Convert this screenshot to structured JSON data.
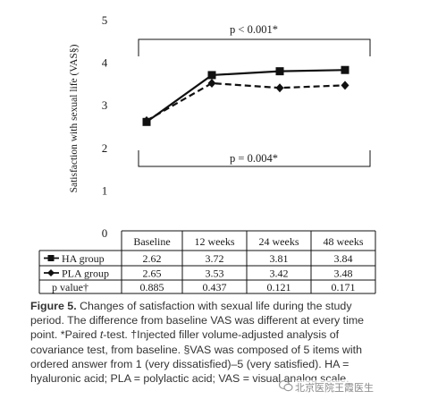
{
  "chart_data": {
    "type": "line",
    "ylabel": "Satisfaction with sexual life (VAS§)",
    "ylim": [
      0,
      5
    ],
    "yticks": [
      "0",
      "1",
      "2",
      "3",
      "4",
      "5"
    ],
    "categories": [
      "Baseline",
      "12 weeks",
      "24 weeks",
      "48 weeks"
    ],
    "series": [
      {
        "name": "HA group",
        "values": [
          2.62,
          3.72,
          3.81,
          3.84
        ],
        "marker": "square",
        "line": "solid",
        "labels": [
          "2.62",
          "3.72",
          "3.81",
          "3.84"
        ]
      },
      {
        "name": "PLA group",
        "values": [
          2.65,
          3.53,
          3.42,
          3.48
        ],
        "marker": "diamond",
        "line": "dashed",
        "labels": [
          "2.65",
          "3.53",
          "3.42",
          "3.48"
        ]
      }
    ],
    "pvalue_row": {
      "label": "p value†",
      "values": [
        "0.885",
        "0.437",
        "0.121",
        "0.171"
      ]
    },
    "annotations": {
      "top_bracket": "p < 0.001*",
      "bottom_bracket": "p = 0.004*"
    }
  },
  "caption": {
    "figure_label": "Figure 5.",
    "line1": "Changes of satisfaction with sexual life during the study",
    "line2": "period. The difference from baseline VAS was different at every time",
    "line3a": "point. *Paired ",
    "line3t": "t",
    "line3b": "-test. ",
    "line3c": "†Injected filler volume-adjusted analysis of",
    "line4": "covariance test, from baseline. §VAS was composed of 5 items with",
    "line5": "ordered answer from 1 (very dissatisfied)–5 (very satisfied). HA =",
    "line6": "hyaluronic acid; PLA = polylactic acid; VAS = visual analog scale."
  },
  "watermark": {
    "text": "北京医院王霞医生"
  },
  "colors": {
    "line": "#111111",
    "text": "#1a1a1a",
    "caption": "#333333",
    "watermark": "#8a8a8a"
  }
}
